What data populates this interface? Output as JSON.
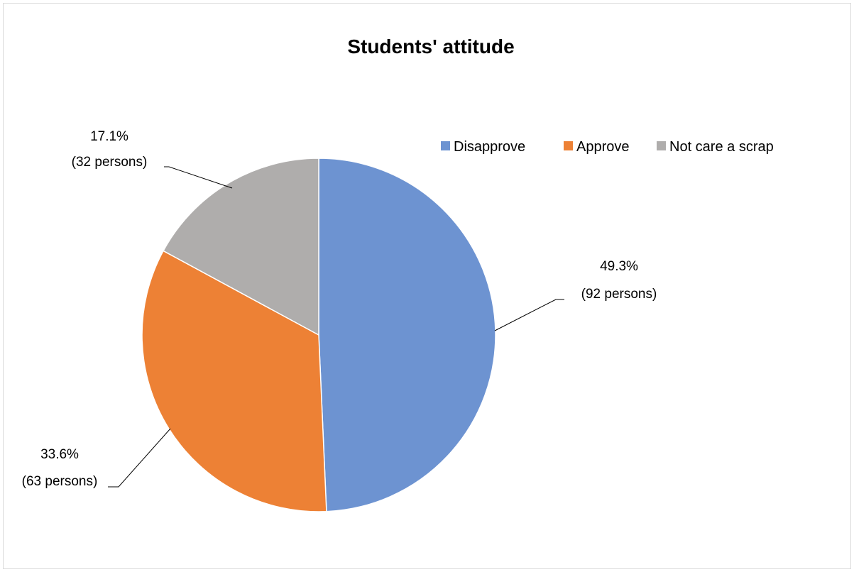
{
  "chart_data": {
    "type": "pie",
    "title": "Students' attitude",
    "start_angle_deg": 0,
    "direction": "clockwise",
    "legend_position": "top-right",
    "slices": [
      {
        "name": "Disapprove",
        "percent": 49.3,
        "count": 92,
        "color": "#6d93d1",
        "label_line1": "49.3%",
        "label_line2": "(92 persons)"
      },
      {
        "name": "Approve",
        "percent": 33.6,
        "count": 63,
        "color": "#ed8135",
        "label_line1": "33.6%",
        "label_line2": "(63 persons)"
      },
      {
        "name": "Not care a scrap",
        "percent": 17.1,
        "count": 32,
        "color": "#afadac",
        "label_line1": "17.1%",
        "label_line2": "(32 persons)"
      }
    ]
  }
}
